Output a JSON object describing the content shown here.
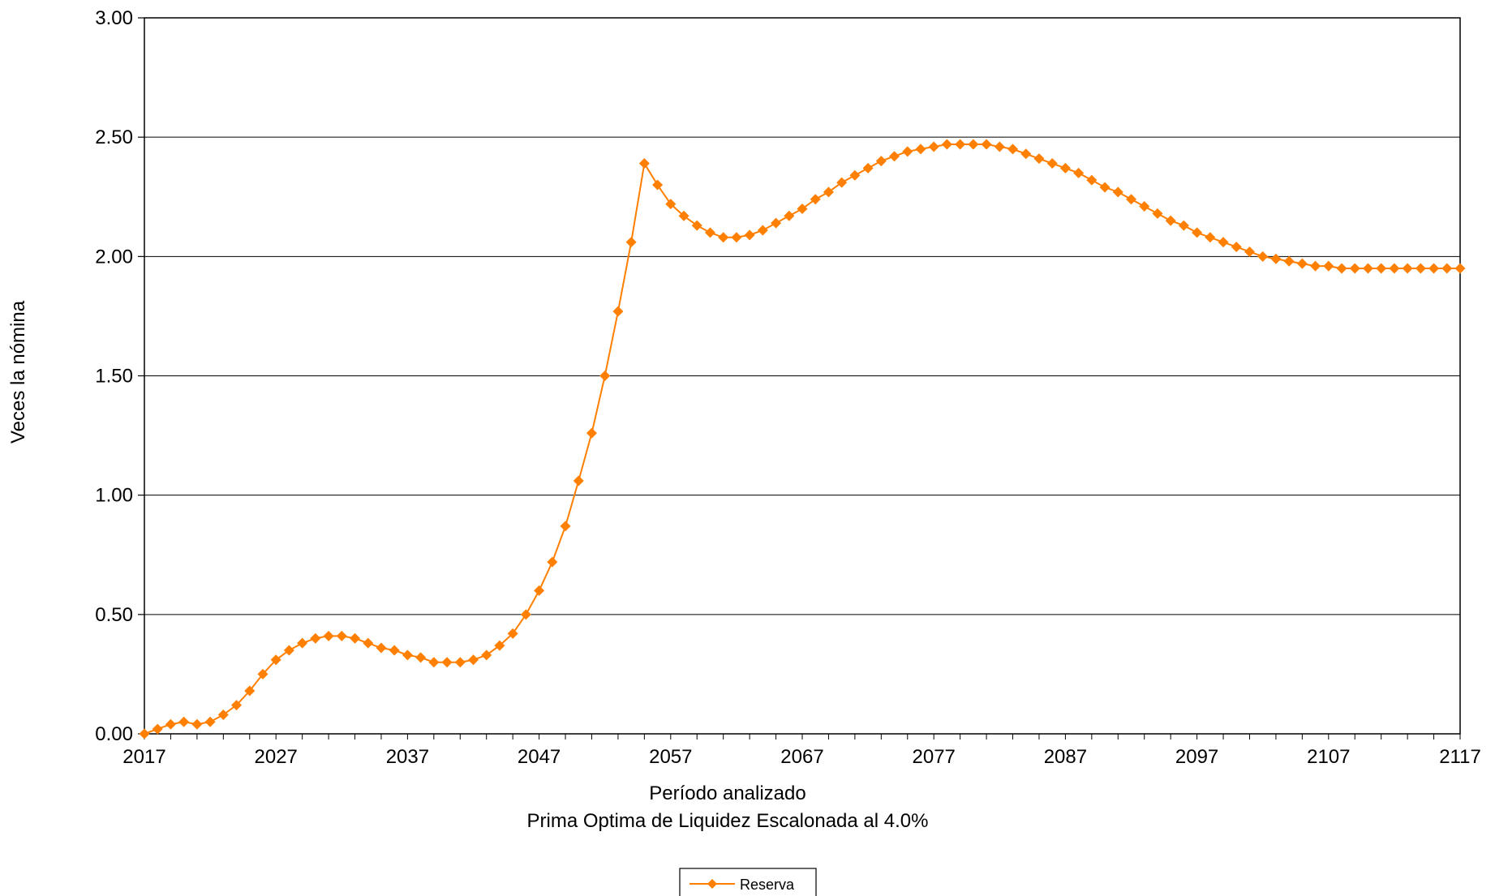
{
  "chart_data": {
    "type": "line",
    "title": "",
    "xlabel": "Período analizado",
    "subtitle": "Prima Optima de Liquidez Escalonada al 4.0%",
    "ylabel": "Veces la nómina",
    "xlim": [
      2017,
      2117
    ],
    "ylim": [
      0,
      3
    ],
    "x_ticks": [
      "2017",
      "2027",
      "2037",
      "2047",
      "2057",
      "2067",
      "2077",
      "2087",
      "2097",
      "2107",
      "2117"
    ],
    "y_ticks": [
      "0.00",
      "0.50",
      "1.00",
      "1.50",
      "2.00",
      "2.50",
      "3.00"
    ],
    "grid": "horizontal",
    "legend_position": "bottom-center",
    "x": [
      2017,
      2018,
      2019,
      2020,
      2021,
      2022,
      2023,
      2024,
      2025,
      2026,
      2027,
      2028,
      2029,
      2030,
      2031,
      2032,
      2033,
      2034,
      2035,
      2036,
      2037,
      2038,
      2039,
      2040,
      2041,
      2042,
      2043,
      2044,
      2045,
      2046,
      2047,
      2048,
      2049,
      2050,
      2051,
      2052,
      2053,
      2054,
      2055,
      2056,
      2057,
      2058,
      2059,
      2060,
      2061,
      2062,
      2063,
      2064,
      2065,
      2066,
      2067,
      2068,
      2069,
      2070,
      2071,
      2072,
      2073,
      2074,
      2075,
      2076,
      2077,
      2078,
      2079,
      2080,
      2081,
      2082,
      2083,
      2084,
      2085,
      2086,
      2087,
      2088,
      2089,
      2090,
      2091,
      2092,
      2093,
      2094,
      2095,
      2096,
      2097,
      2098,
      2099,
      2100,
      2101,
      2102,
      2103,
      2104,
      2105,
      2106,
      2107,
      2108,
      2109,
      2110,
      2111,
      2112,
      2113,
      2114,
      2115,
      2116,
      2117
    ],
    "series": [
      {
        "name": "Reserva",
        "color": "#FF7F00",
        "marker": "diamond",
        "values": [
          0.0,
          0.02,
          0.04,
          0.05,
          0.04,
          0.05,
          0.08,
          0.12,
          0.18,
          0.25,
          0.31,
          0.35,
          0.38,
          0.4,
          0.41,
          0.41,
          0.4,
          0.38,
          0.36,
          0.35,
          0.33,
          0.32,
          0.3,
          0.3,
          0.3,
          0.31,
          0.33,
          0.37,
          0.42,
          0.5,
          0.6,
          0.72,
          0.87,
          1.06,
          1.26,
          1.5,
          1.77,
          2.06,
          2.39,
          2.3,
          2.22,
          2.17,
          2.13,
          2.1,
          2.08,
          2.08,
          2.09,
          2.11,
          2.14,
          2.17,
          2.2,
          2.24,
          2.27,
          2.31,
          2.34,
          2.37,
          2.4,
          2.42,
          2.44,
          2.45,
          2.46,
          2.47,
          2.47,
          2.47,
          2.47,
          2.46,
          2.45,
          2.43,
          2.41,
          2.39,
          2.37,
          2.35,
          2.32,
          2.29,
          2.27,
          2.24,
          2.21,
          2.18,
          2.15,
          2.13,
          2.1,
          2.08,
          2.06,
          2.04,
          2.02,
          2.0,
          1.99,
          1.98,
          1.97,
          1.96,
          1.96,
          1.95,
          1.95,
          1.95,
          1.95,
          1.95,
          1.95,
          1.95,
          1.95,
          1.95,
          1.95
        ]
      }
    ]
  }
}
